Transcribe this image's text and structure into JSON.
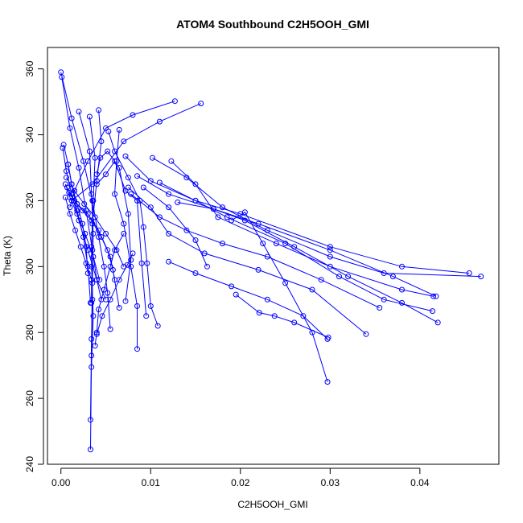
{
  "chart_data": {
    "type": "scatter",
    "title": "ATOM4 Southbound C2H5OOH_GMI",
    "xlabel": "C2H5OOH_GMI",
    "ylabel": "Theta (K)",
    "xlim": [
      -0.0015,
      0.0488
    ],
    "ylim": [
      240,
      366.5
    ],
    "xticks": [
      0.0,
      0.01,
      0.02,
      0.03,
      0.04
    ],
    "xtick_labels": [
      "0.00",
      "0.01",
      "0.02",
      "0.03",
      "0.04"
    ],
    "yticks": [
      240,
      260,
      280,
      300,
      320,
      340,
      360
    ],
    "ytick_labels": [
      "240",
      "260",
      "280",
      "300",
      "320",
      "340",
      "360"
    ],
    "grid": false,
    "legend": "none",
    "series_color": "#0000ff",
    "profiles": [
      [
        [
          0.0,
          359.0
        ],
        [
          0.0012,
          345.0
        ],
        [
          0.0025,
          332.0
        ],
        [
          0.0035,
          320.0
        ],
        [
          0.0042,
          309.0
        ],
        [
          0.0048,
          300.0
        ],
        [
          0.0052,
          292.0
        ],
        [
          0.0055,
          281.0
        ]
      ],
      [
        [
          0.0001,
          357.5
        ],
        [
          0.001,
          342.0
        ],
        [
          0.002,
          330.0
        ],
        [
          0.0028,
          317.0
        ],
        [
          0.0035,
          305.0
        ],
        [
          0.004,
          296.0
        ],
        [
          0.0045,
          290.0
        ]
      ],
      [
        [
          0.0127,
          350.2
        ],
        [
          0.008,
          346.0
        ],
        [
          0.005,
          342.0
        ],
        [
          0.003,
          332.0
        ],
        [
          0.0015,
          323.0
        ],
        [
          0.001,
          318.0
        ]
      ],
      [
        [
          0.0156,
          349.5
        ],
        [
          0.011,
          344.0
        ],
        [
          0.007,
          338.0
        ],
        [
          0.0035,
          325.0
        ],
        [
          0.0012,
          320.0
        ]
      ],
      [
        [
          0.0042,
          347.5
        ],
        [
          0.0045,
          338.0
        ],
        [
          0.004,
          326.0
        ],
        [
          0.0035,
          313.0
        ],
        [
          0.0034,
          300.0
        ],
        [
          0.0036,
          285.0
        ],
        [
          0.0034,
          269.5
        ]
      ],
      [
        [
          0.002,
          347.0
        ],
        [
          0.0032,
          335.0
        ],
        [
          0.0034,
          322.0
        ],
        [
          0.0036,
          310.0
        ],
        [
          0.0035,
          295.0
        ],
        [
          0.0034,
          278.0
        ],
        [
          0.0033,
          253.5
        ]
      ],
      [
        [
          0.0032,
          345.5
        ],
        [
          0.0038,
          333.0
        ],
        [
          0.0036,
          320.0
        ],
        [
          0.0034,
          306.0
        ],
        [
          0.0035,
          290.0
        ],
        [
          0.0034,
          273.0
        ],
        [
          0.0033,
          244.5
        ]
      ],
      [
        [
          0.0065,
          341.5
        ],
        [
          0.0062,
          332.0
        ],
        [
          0.006,
          322.0
        ],
        [
          0.007,
          313.0
        ],
        [
          0.0078,
          300.0
        ],
        [
          0.0085,
          288.0
        ],
        [
          0.0085,
          275.0
        ]
      ],
      [
        [
          0.0053,
          341.0
        ],
        [
          0.006,
          335.0
        ],
        [
          0.0075,
          327.0
        ],
        [
          0.0088,
          320.0
        ],
        [
          0.0092,
          312.0
        ],
        [
          0.0096,
          301.0
        ],
        [
          0.01,
          288.0
        ],
        [
          0.0108,
          282.0
        ]
      ],
      [
        [
          0.0003,
          337.0
        ],
        [
          0.0008,
          331.0
        ],
        [
          0.0012,
          325.0
        ],
        [
          0.0018,
          317.0
        ],
        [
          0.0025,
          309.0
        ],
        [
          0.003,
          300.0
        ],
        [
          0.0033,
          289.0
        ]
      ],
      [
        [
          0.0002,
          336.0
        ],
        [
          0.0006,
          329.0
        ],
        [
          0.0012,
          322.0
        ],
        [
          0.002,
          314.0
        ],
        [
          0.003,
          305.0
        ],
        [
          0.004,
          296.0
        ],
        [
          0.005,
          290.0
        ]
      ],
      [
        [
          0.0072,
          333.5
        ],
        [
          0.01,
          326.0
        ],
        [
          0.015,
          320.0
        ],
        [
          0.02,
          316.0
        ],
        [
          0.03,
          306.0
        ],
        [
          0.038,
          300.0
        ],
        [
          0.0455,
          298.0
        ]
      ],
      [
        [
          0.0102,
          333.0
        ],
        [
          0.014,
          327.0
        ],
        [
          0.018,
          318.0
        ],
        [
          0.023,
          311.0
        ],
        [
          0.03,
          303.0
        ],
        [
          0.036,
          298.0
        ],
        [
          0.0468,
          297.0
        ]
      ],
      [
        [
          0.0123,
          332.0
        ],
        [
          0.015,
          325.0
        ],
        [
          0.0175,
          315.0
        ],
        [
          0.024,
          307.0
        ],
        [
          0.03,
          300.0
        ],
        [
          0.038,
          293.0
        ],
        [
          0.0415,
          291.0
        ]
      ],
      [
        [
          0.0085,
          327.5
        ],
        [
          0.012,
          322.0
        ],
        [
          0.017,
          317.5
        ],
        [
          0.022,
          313.0
        ],
        [
          0.03,
          305.0
        ],
        [
          0.037,
          297.0
        ],
        [
          0.0418,
          291.0
        ]
      ],
      [
        [
          0.011,
          325.5
        ],
        [
          0.015,
          320.0
        ],
        [
          0.0185,
          315.0
        ],
        [
          0.025,
          307.0
        ],
        [
          0.031,
          297.0
        ],
        [
          0.036,
          290.0
        ],
        [
          0.0414,
          286.5
        ]
      ],
      [
        [
          0.013,
          319.5
        ],
        [
          0.017,
          317.5
        ],
        [
          0.0205,
          314.0
        ],
        [
          0.026,
          306.0
        ],
        [
          0.032,
          297.0
        ],
        [
          0.038,
          289.0
        ],
        [
          0.042,
          283.0
        ]
      ],
      [
        [
          0.0078,
          322.0
        ],
        [
          0.011,
          315.0
        ],
        [
          0.014,
          311.0
        ],
        [
          0.018,
          307.0
        ],
        [
          0.023,
          303.0
        ],
        [
          0.029,
          296.0
        ],
        [
          0.0355,
          287.5
        ]
      ],
      [
        [
          0.0075,
          324.0
        ],
        [
          0.01,
          318.0
        ],
        [
          0.012,
          310.0
        ],
        [
          0.016,
          304.0
        ],
        [
          0.022,
          299.0
        ],
        [
          0.028,
          293.0
        ],
        [
          0.034,
          279.5
        ]
      ],
      [
        [
          0.012,
          301.5
        ],
        [
          0.015,
          298.0
        ],
        [
          0.019,
          294.0
        ],
        [
          0.023,
          290.0
        ],
        [
          0.027,
          285.0
        ],
        [
          0.0297,
          278.0
        ]
      ],
      [
        [
          0.0195,
          291.5
        ],
        [
          0.0221,
          286.0
        ],
        [
          0.0238,
          285.0
        ],
        [
          0.026,
          283.0
        ],
        [
          0.0298,
          278.5
        ]
      ],
      [
        [
          0.019,
          314.0
        ],
        [
          0.0205,
          316.5
        ],
        [
          0.0225,
          307.0
        ],
        [
          0.025,
          295.0
        ],
        [
          0.028,
          280.0
        ],
        [
          0.0297,
          265.0
        ]
      ],
      [
        [
          0.0092,
          324.0
        ],
        [
          0.012,
          318.0
        ],
        [
          0.015,
          308.0
        ],
        [
          0.0163,
          300.0
        ]
      ],
      [
        [
          0.0008,
          331.0
        ],
        [
          0.0012,
          325.0
        ],
        [
          0.0018,
          319.0
        ],
        [
          0.0024,
          313.0
        ],
        [
          0.0028,
          306.0
        ],
        [
          0.003,
          298.0
        ]
      ],
      [
        [
          0.0005,
          325.0
        ],
        [
          0.001,
          321.0
        ],
        [
          0.0018,
          316.0
        ],
        [
          0.0027,
          310.0
        ],
        [
          0.0036,
          303.0
        ],
        [
          0.0043,
          296.0
        ]
      ],
      [
        [
          0.0007,
          324.0
        ],
        [
          0.0015,
          320.0
        ],
        [
          0.0024,
          317.0
        ],
        [
          0.0034,
          314.0
        ],
        [
          0.0045,
          309.0
        ],
        [
          0.0055,
          303.0
        ],
        [
          0.006,
          296.0
        ]
      ],
      [
        [
          0.0009,
          322.5
        ],
        [
          0.0018,
          319.0
        ],
        [
          0.003,
          316.0
        ],
        [
          0.0042,
          311.0
        ],
        [
          0.0052,
          305.0
        ],
        [
          0.0058,
          299.0
        ],
        [
          0.0065,
          287.5
        ]
      ],
      [
        [
          0.0006,
          327.0
        ],
        [
          0.0015,
          323.0
        ],
        [
          0.0026,
          319.0
        ],
        [
          0.0038,
          315.0
        ],
        [
          0.005,
          310.0
        ],
        [
          0.0062,
          305.0
        ],
        [
          0.007,
          300.0
        ]
      ],
      [
        [
          0.007,
          310.0
        ],
        [
          0.006,
          305.0
        ],
        [
          0.0055,
          300.0
        ],
        [
          0.0048,
          293.0
        ],
        [
          0.0042,
          287.0
        ],
        [
          0.004,
          280.0
        ],
        [
          0.0038,
          276.0
        ]
      ],
      [
        [
          0.008,
          304.0
        ],
        [
          0.0074,
          300.5
        ],
        [
          0.0065,
          296.0
        ],
        [
          0.0055,
          290.0
        ],
        [
          0.0046,
          285.0
        ],
        [
          0.004,
          279.5
        ]
      ],
      [
        [
          0.004,
          325.0
        ],
        [
          0.005,
          328.0
        ],
        [
          0.006,
          332.0
        ],
        [
          0.0072,
          323.0
        ],
        [
          0.0085,
          320.0
        ],
        [
          0.009,
          301.0
        ],
        [
          0.0095,
          285.0
        ]
      ],
      [
        [
          0.004,
          328.0
        ],
        [
          0.0044,
          333.0
        ],
        [
          0.0052,
          335.0
        ],
        [
          0.0065,
          330.0
        ],
        [
          0.0075,
          316.0
        ],
        [
          0.0078,
          302.0
        ],
        [
          0.0072,
          289.5
        ]
      ],
      [
        [
          0.0005,
          321.0
        ],
        [
          0.001,
          316.0
        ],
        [
          0.0016,
          311.0
        ],
        [
          0.0022,
          306.0
        ],
        [
          0.0028,
          301.0
        ],
        [
          0.0034,
          296.0
        ],
        [
          0.0034,
          289.0
        ]
      ]
    ]
  }
}
